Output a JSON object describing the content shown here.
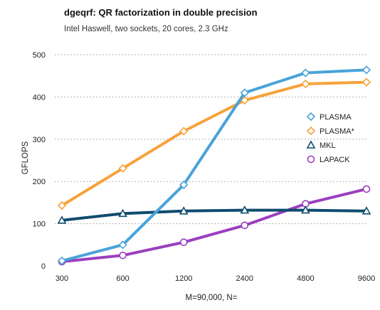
{
  "chart_data": {
    "type": "line",
    "title": "dgeqrf: QR factorization in double precision",
    "subtitle": "Intel Haswell, two sockets, 20 cores, 2.3 GHz",
    "xlabel": "M=90,000, N=",
    "ylabel": "GFLOPS",
    "categories": [
      "300",
      "600",
      "1200",
      "2400",
      "4800",
      "9600"
    ],
    "ylim": [
      0,
      500
    ],
    "yticks": [
      0,
      100,
      200,
      300,
      400,
      500
    ],
    "grid": "horizontal dotted",
    "legend_position": "right",
    "series": [
      {
        "name": "PLASMA",
        "color": "#4aa3d8",
        "marker": "diamond",
        "values": [
          12,
          50,
          192,
          410,
          457,
          464
        ]
      },
      {
        "name": "PLASMA*",
        "color": "#f7a23b",
        "marker": "diamond",
        "values": [
          143,
          231,
          319,
          392,
          431,
          435
        ]
      },
      {
        "name": "MKL",
        "color": "#0f4c6e",
        "marker": "triangle",
        "values": [
          108,
          124,
          130,
          132,
          132,
          130
        ]
      },
      {
        "name": "LAPACK",
        "color": "#9b3fbf",
        "marker": "circle",
        "values": [
          10,
          25,
          56,
          96,
          147,
          182
        ]
      }
    ]
  }
}
